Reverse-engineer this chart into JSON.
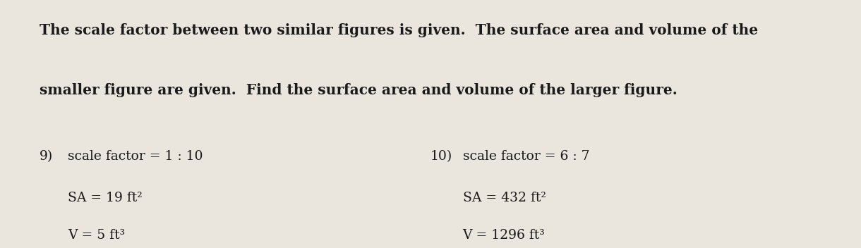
{
  "background_color": "#eae6de",
  "title_line1": "The scale factor between two similar figures is given.  The surface area and volume of the",
  "title_line2": "smaller figure are given.  Find the surface area and volume of the larger figure.",
  "problem9_label": "9)",
  "problem9_line1": "scale factor = 1 : 10",
  "problem9_line2": "SA = 19 ft²",
  "problem9_line3": "V = 5 ft³",
  "problem10_label": "10)",
  "problem10_line1": "scale factor = 6 : 7",
  "problem10_line2": "SA = 432 ft²",
  "problem10_line3": "V = 1296 ft³",
  "text_color": "#1a1a1a",
  "title_fontsize": 14.5,
  "body_fontsize": 13.5,
  "figwidth": 12.0,
  "figheight": 3.28
}
